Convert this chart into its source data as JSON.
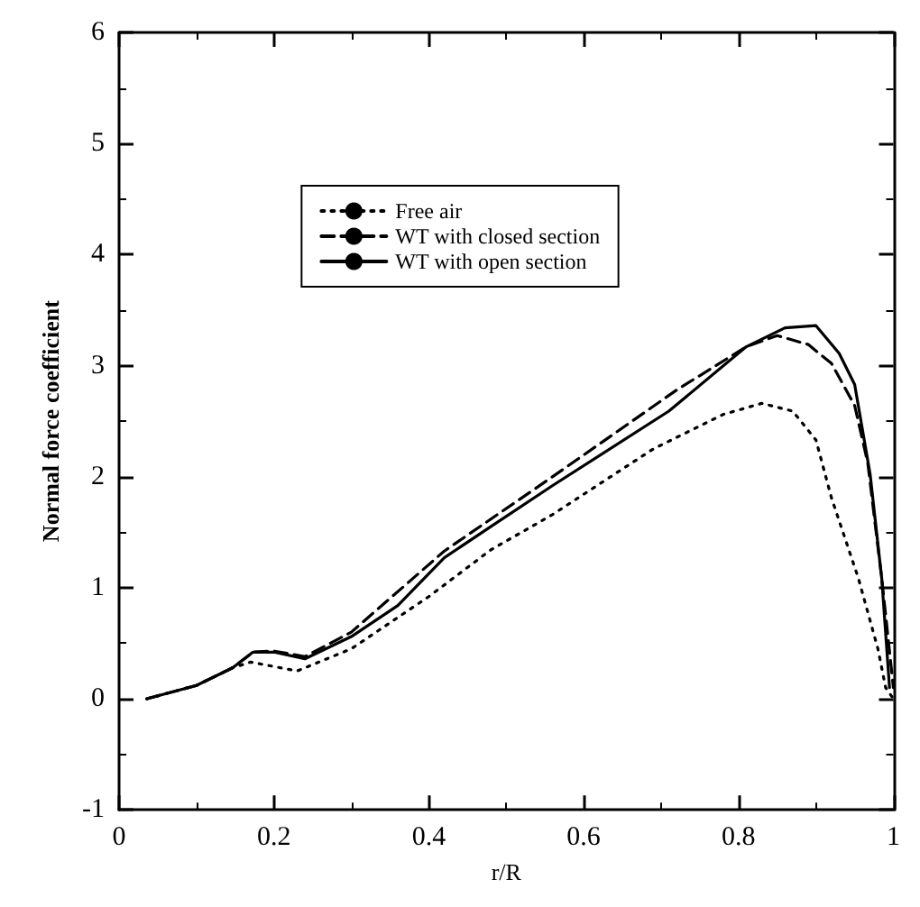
{
  "chart_data": {
    "type": "line",
    "xlabel": "r/R",
    "ylabel": "Normal force coefficient",
    "xlim": [
      0,
      1
    ],
    "xticks": [
      0,
      0.2,
      0.4,
      0.6,
      0.8,
      1
    ],
    "ylim": [
      -1,
      6
    ],
    "yticks": [
      -1,
      0,
      1,
      2,
      3,
      4,
      5,
      6
    ],
    "grid": false,
    "legend": "top",
    "marker": "none",
    "series": [
      {
        "name": "Free air",
        "color": "#000000",
        "line_style": "dotted",
        "x": [
          0.036,
          0.1,
          0.147,
          0.17,
          0.23,
          0.3,
          0.4,
          0.48,
          0.56,
          0.69,
          0.78,
          0.83,
          0.87,
          0.9,
          0.92,
          0.955,
          0.98,
          0.99,
          1.0
        ],
        "values": [
          0,
          0.12,
          0.28,
          0.33,
          0.25,
          0.45,
          0.92,
          1.34,
          1.66,
          2.25,
          2.56,
          2.66,
          2.59,
          2.33,
          1.81,
          1.08,
          0.45,
          0.1,
          0
        ]
      },
      {
        "name": "WT with closed section",
        "color": "#000000",
        "line_style": "dashed",
        "x": [
          0.036,
          0.1,
          0.147,
          0.173,
          0.2,
          0.24,
          0.3,
          0.42,
          0.56,
          0.72,
          0.81,
          0.85,
          0.89,
          0.92,
          0.95,
          0.967,
          0.985,
          1.0
        ],
        "values": [
          0,
          0.12,
          0.28,
          0.42,
          0.43,
          0.38,
          0.6,
          1.33,
          2.0,
          2.78,
          3.17,
          3.27,
          3.19,
          3.02,
          2.64,
          2.12,
          1.08,
          0.1
        ]
      },
      {
        "name": "WT with open section",
        "color": "#000000",
        "line_style": "solid",
        "x": [
          0.036,
          0.1,
          0.147,
          0.173,
          0.2,
          0.24,
          0.3,
          0.36,
          0.42,
          0.48,
          0.56,
          0.71,
          0.81,
          0.86,
          0.9,
          0.93,
          0.95,
          0.97,
          0.985,
          0.995
        ],
        "values": [
          0,
          0.12,
          0.28,
          0.42,
          0.42,
          0.36,
          0.56,
          0.84,
          1.27,
          1.55,
          1.92,
          2.59,
          3.17,
          3.34,
          3.36,
          3.11,
          2.83,
          2.02,
          1.08,
          0.1
        ]
      }
    ]
  }
}
